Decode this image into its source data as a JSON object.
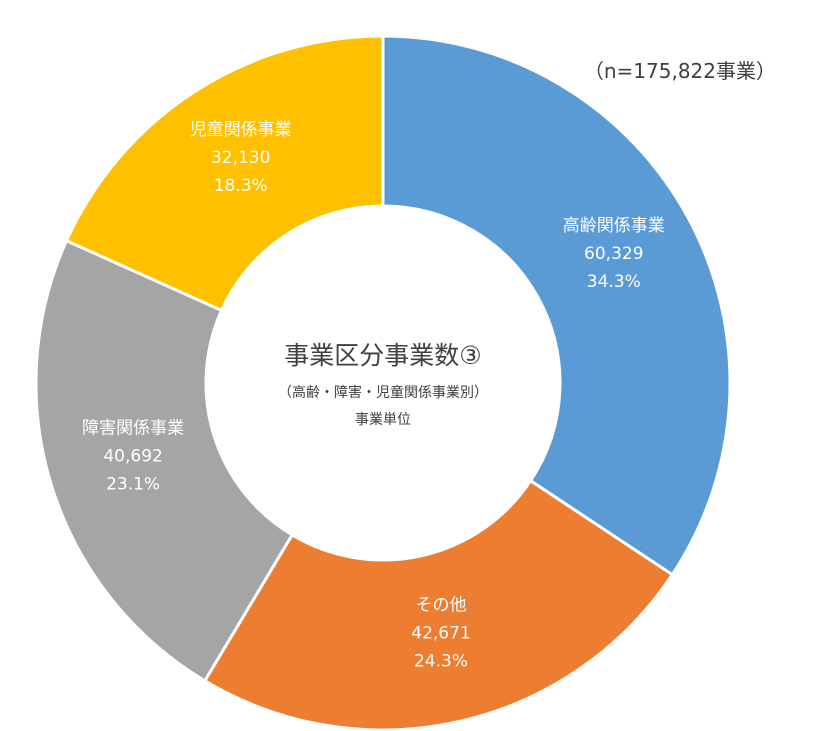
{
  "chart_data": {
    "type": "pie",
    "subtype": "donut",
    "title": "事業区分事業数③",
    "subtitle": "（高齢・障害・児童関係事業別）",
    "unit_note": "事業単位",
    "n_label": "（n=175,822事業）",
    "total": 175822,
    "start_angle_deg": 0,
    "direction": "clockwise",
    "legend": "none",
    "slices": [
      {
        "name": "高齢関係事業",
        "value": 60329,
        "value_label": "60,329",
        "percent_label": "34.3%",
        "color": "#5B9BD5"
      },
      {
        "name": "その他",
        "value": 42671,
        "value_label": "42,671",
        "percent_label": "24.3%",
        "color": "#ED7D31"
      },
      {
        "name": "障害関係事業",
        "value": 40692,
        "value_label": "40,692",
        "percent_label": "23.1%",
        "color": "#A5A5A5"
      },
      {
        "name": "児童関係事業",
        "value": 32130,
        "value_label": "32,130",
        "percent_label": "18.3%",
        "color": "#FFC000"
      }
    ]
  }
}
